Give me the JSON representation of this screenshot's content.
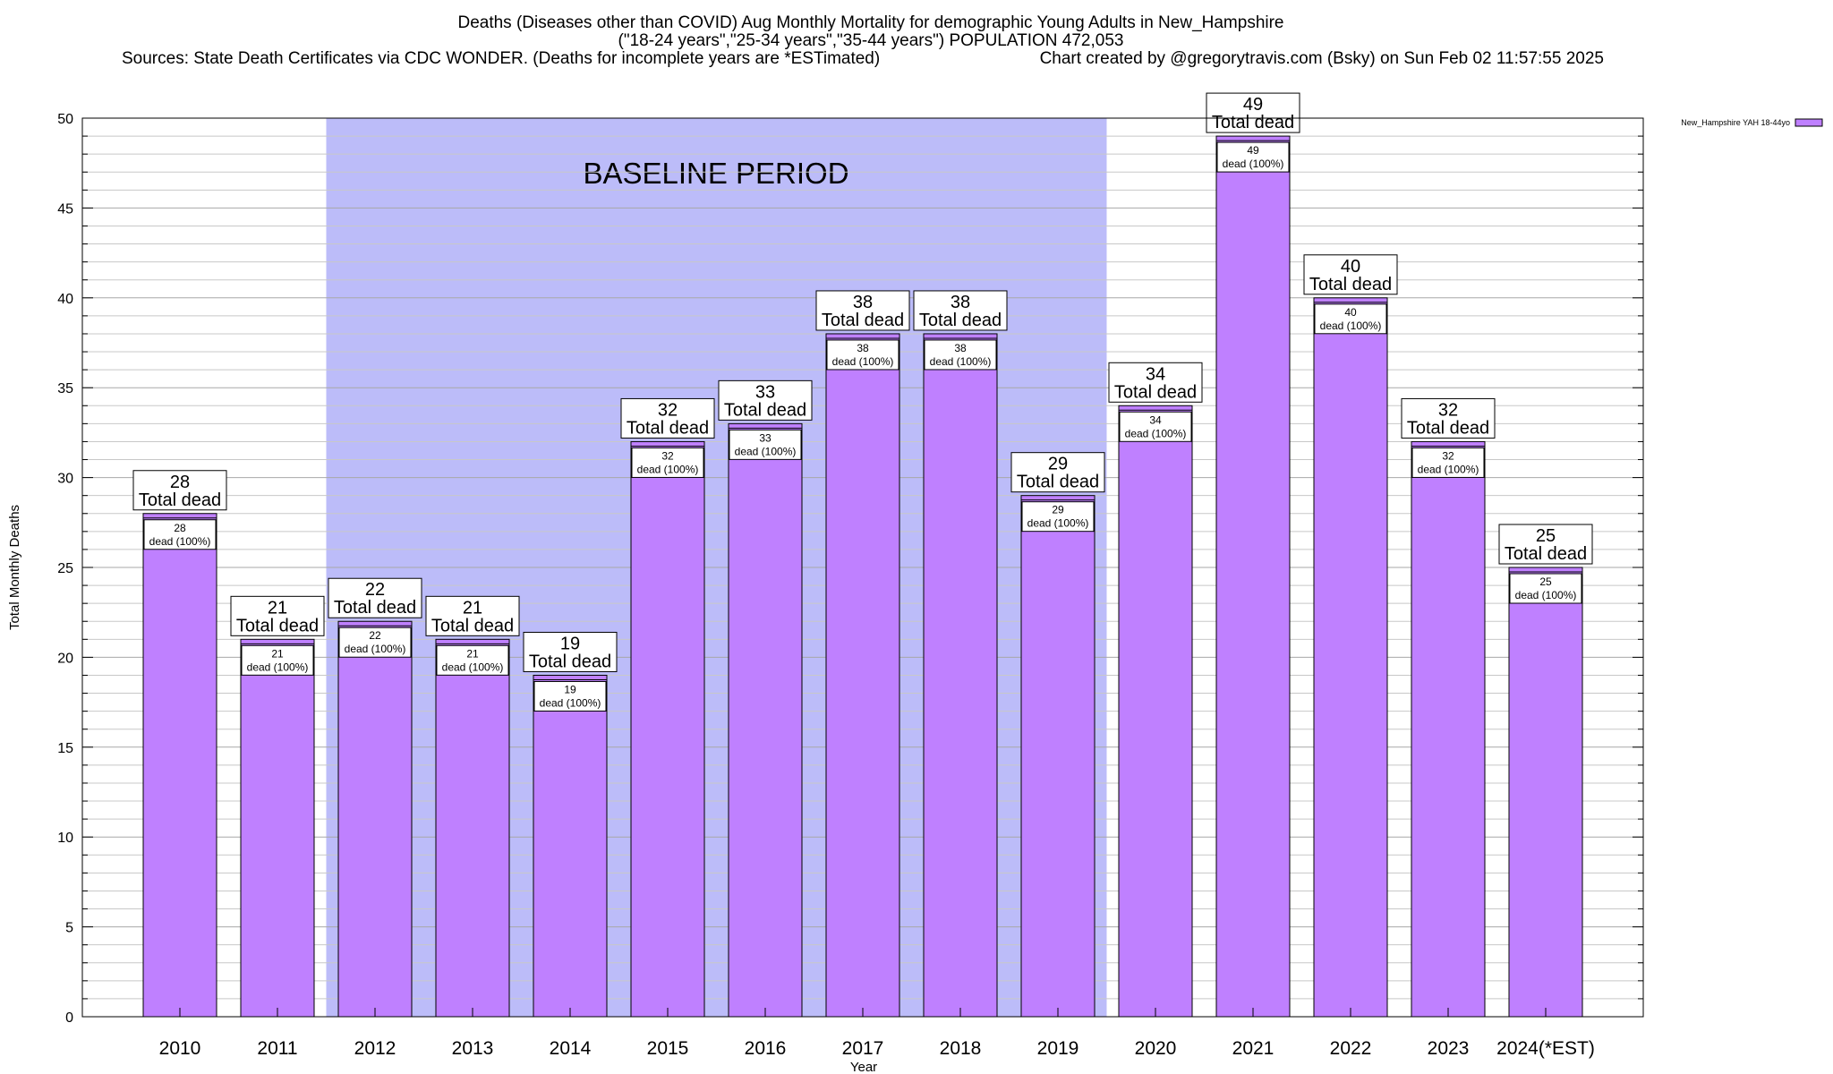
{
  "chart_data": {
    "type": "bar",
    "title_lines": [
      "Deaths (Diseases other than COVID) Aug Monthly Mortality for demographic Young Adults in New_Hampshire",
      "(\"18-24 years\",\"25-34 years\",\"35-44 years\") POPULATION 472,053",
      "Sources: State Death Certificates via CDC WONDER. (Deaths for incomplete years are *ESTimated)",
      "Chart created by @gregorytravis.com (Bsky) on Sun Feb 02 11:57:55 2025"
    ],
    "xlabel": "Year",
    "ylabel": "Total Monthly Deaths",
    "ylim": [
      0,
      50
    ],
    "y_ticks": [
      0,
      5,
      10,
      15,
      20,
      25,
      30,
      35,
      40,
      45,
      50
    ],
    "y_minor_step": 1,
    "grid": true,
    "categories": [
      "2010",
      "2011",
      "2012",
      "2013",
      "2014",
      "2015",
      "2016",
      "2017",
      "2018",
      "2019",
      "2020",
      "2021",
      "2022",
      "2023",
      "2024(*EST)"
    ],
    "series": [
      {
        "name": "New_Hampshire YAH 18-44yo",
        "color": "#bf80ff",
        "values": [
          28,
          21,
          22,
          21,
          19,
          32,
          33,
          38,
          38,
          29,
          34,
          49,
          40,
          32,
          25
        ]
      }
    ],
    "bar_label_suffix": "Total dead",
    "bar_inner_label_suffix": "dead (100%)",
    "baseline_period": {
      "label": "BASELINE PERIOD",
      "start_category": "2012",
      "end_category": "2019",
      "color": "#bcbcf9"
    },
    "legend_position": "top-right"
  }
}
